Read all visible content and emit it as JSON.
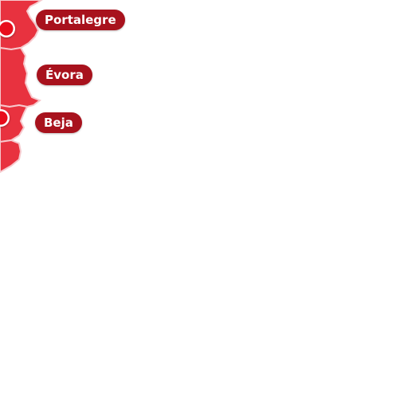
{
  "map": {
    "colors": {
      "region_fill": "#e8323f",
      "region_fill_dark": "#d62a37",
      "border": "#f6c9cd",
      "pin": "#e8101f",
      "pin_ring": "#ffffff",
      "label_bg": "#a8121d",
      "label_text": "#ffffff"
    },
    "regions": [
      {
        "id": "portalegre",
        "label": "Portalegre"
      },
      {
        "id": "evora",
        "label": "Évora"
      },
      {
        "id": "beja",
        "label": "Beja"
      },
      {
        "id": "faro",
        "label": ""
      }
    ],
    "pins": [
      {
        "region": "portalegre",
        "icon": "map-pin-icon"
      },
      {
        "region": "beja",
        "icon": "map-pin-icon"
      }
    ]
  }
}
